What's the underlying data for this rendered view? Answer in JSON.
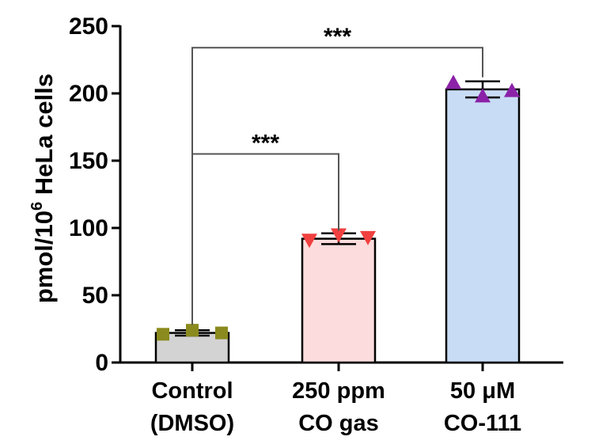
{
  "chart_data": {
    "type": "bar",
    "title": "",
    "xlabel": "",
    "ylabel": {
      "prefix": "pmol/10",
      "superscript": "6",
      "suffix": " HeLa cells"
    },
    "ylim": [
      0,
      250
    ],
    "yticks": [
      0,
      50,
      100,
      150,
      200,
      250
    ],
    "grid": false,
    "categories": [
      {
        "line1": "Control",
        "line2": "(DMSO)"
      },
      {
        "line1": "250 ppm",
        "line2": "CO gas"
      },
      {
        "line1": "50 μM",
        "line2": "CO-111"
      }
    ],
    "values": [
      22,
      92,
      203
    ],
    "error": [
      2,
      4,
      6
    ],
    "points": [
      [
        21,
        24,
        22
      ],
      [
        91,
        95,
        93
      ],
      [
        208,
        198,
        202
      ]
    ],
    "colors": {
      "bar_fill": [
        "#d3d3d3",
        "#fcdcdc",
        "#c9dcf5"
      ],
      "marker": [
        "#8a8a1e",
        "#f04040",
        "#8b22a8"
      ]
    },
    "marker_shapes": [
      "square",
      "triangle-down",
      "triangle-up"
    ],
    "significance": [
      {
        "from": 0,
        "to": 1,
        "label": "***",
        "y": 155
      },
      {
        "from": 0,
        "to": 2,
        "label": "***",
        "y": 234
      }
    ]
  }
}
